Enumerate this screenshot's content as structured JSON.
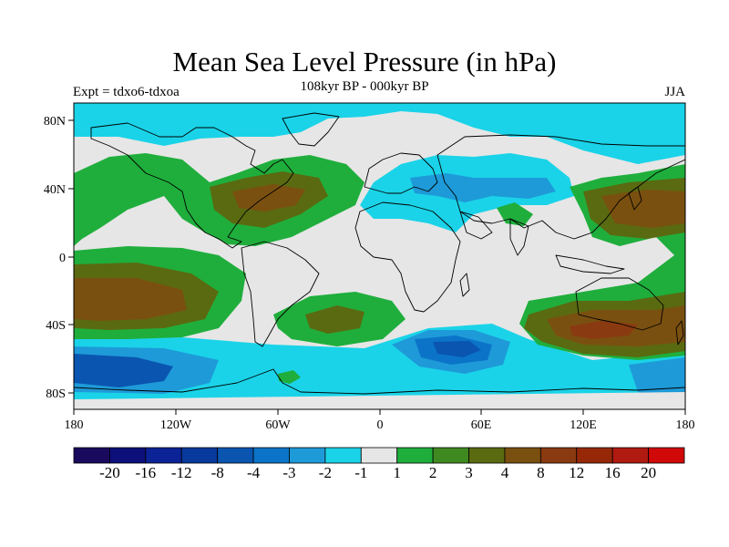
{
  "title": "Mean Sea Level Pressure (in hPa)",
  "subtitle": "108kyr BP - 000kyr BP",
  "experiment_label": "Expt = tdxo6-tdxoa",
  "season_label": "JJA",
  "map": {
    "projection": "cylindrical equidistant",
    "lon_range": [
      -180,
      180
    ],
    "lat_range": [
      -90,
      90
    ],
    "x_tick_labels": [
      "180",
      "120W",
      "60W",
      "0",
      "60E",
      "120E",
      "180"
    ],
    "y_tick_labels": [
      "80N",
      "40N",
      "0",
      "40S",
      "80S"
    ],
    "background_color": "#e6e6e6",
    "coastline_color": "#000000"
  },
  "colorbar": {
    "colors": [
      "#1a0a5e",
      "#0d0f7a",
      "#0b2396",
      "#08399c",
      "#0a55b0",
      "#0b74c8",
      "#1e9ad8",
      "#1ad3e8",
      "#e6e6e6",
      "#1fae3c",
      "#3f8a20",
      "#5a6a10",
      "#7a5010",
      "#8a3a10",
      "#962808",
      "#b01a10",
      "#d00808"
    ],
    "labels": [
      "-20",
      "-16",
      "-12",
      "-8",
      "-4",
      "-3",
      "-2",
      "-1",
      "1",
      "2",
      "3",
      "4",
      "8",
      "12",
      "16",
      "20"
    ]
  }
}
